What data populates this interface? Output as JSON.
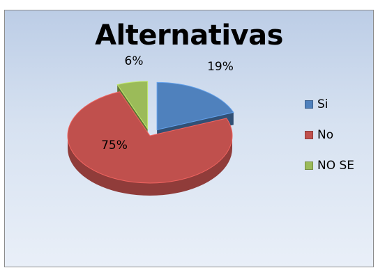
{
  "chart_data": {
    "type": "pie",
    "title": "Alternativas",
    "categories": [
      "Si",
      "No",
      "NO SE"
    ],
    "values": [
      19,
      75,
      6
    ],
    "data_labels": [
      "19%",
      "75%",
      "6%"
    ],
    "colors": [
      "#4f81bd",
      "#c0504d",
      "#9bbb59"
    ],
    "legend": "right",
    "style": "3d-exploded"
  }
}
